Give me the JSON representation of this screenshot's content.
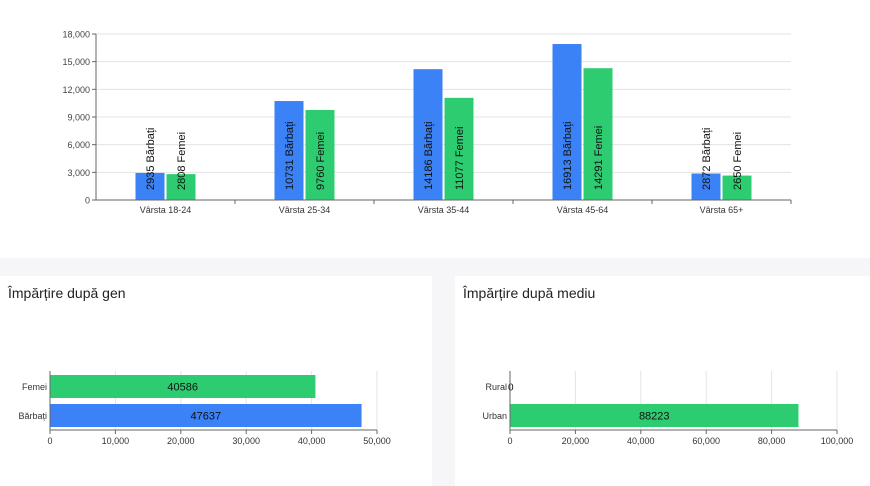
{
  "chart_data": [
    {
      "type": "bar",
      "title": "",
      "categories": [
        "Vârsta 18-24",
        "Vârsta 25-34",
        "Vârsta 35-44",
        "Vârsta 45-64",
        "Vârsta 65+"
      ],
      "series": [
        {
          "name": "Bărbați",
          "color": "#3b82f6",
          "values": [
            2935,
            10731,
            14186,
            16913,
            2872
          ]
        },
        {
          "name": "Femei",
          "color": "#2ecc71",
          "values": [
            2808,
            9760,
            11077,
            14291,
            2650
          ]
        }
      ],
      "ylim": [
        0,
        18000
      ],
      "yticks": [
        0,
        3000,
        6000,
        9000,
        12000,
        15000,
        18000
      ],
      "grid": true
    },
    {
      "type": "bar",
      "orientation": "horizontal",
      "title": "Împărțire după gen",
      "categories": [
        "Femei",
        "Bărbați"
      ],
      "values": [
        40586,
        47637
      ],
      "colors": [
        "#2ecc71",
        "#3b82f6"
      ],
      "xlim": [
        0,
        50000
      ],
      "xticks": [
        0,
        10000,
        20000,
        30000,
        40000,
        50000
      ]
    },
    {
      "type": "bar",
      "orientation": "horizontal",
      "title": "Împărțire după mediu",
      "categories": [
        "Rural",
        "Urban"
      ],
      "values": [
        0,
        88223
      ],
      "colors": [
        "#2ecc71",
        "#2ecc71"
      ],
      "xlim": [
        0,
        100000
      ],
      "xticks": [
        0,
        20000,
        40000,
        60000,
        80000,
        100000
      ]
    }
  ]
}
